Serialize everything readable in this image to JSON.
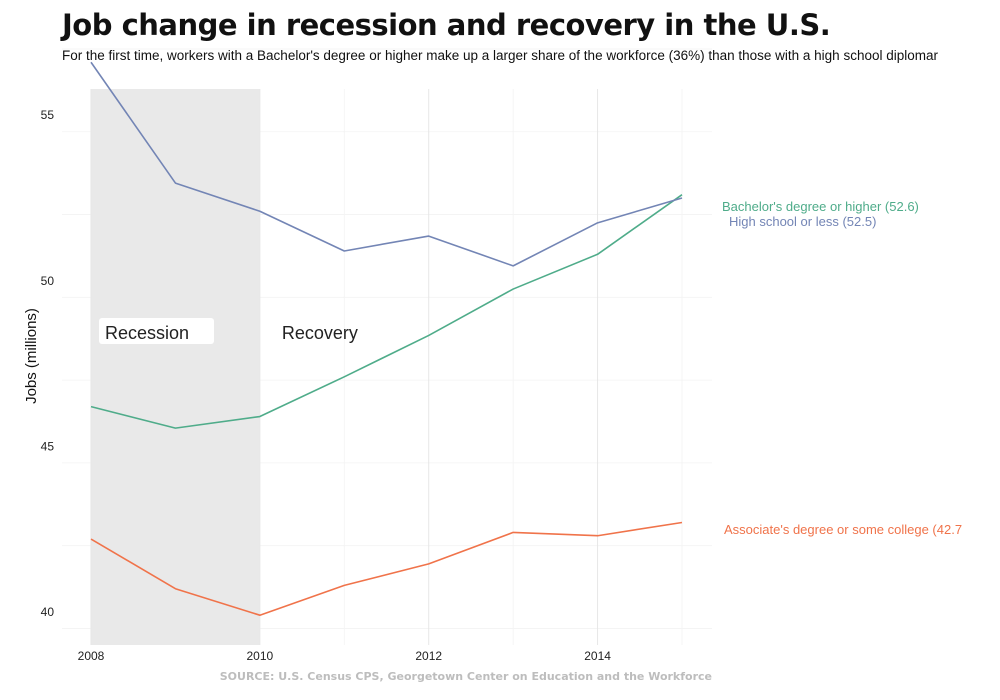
{
  "title": "Job change in recession and recovery in the U.S.",
  "subtitle": "For the first time, workers with a Bachelor's degree or higher make up a larger share of the workforce (36%) than those with a high school diplomar",
  "source": "SOURCE: U.S. Census CPS, Georgetown Center on Education and the Workforce",
  "chart_data": {
    "type": "line",
    "ylabel": "Jobs (millions)",
    "xlabel": "",
    "x": [
      2008,
      2009,
      2010,
      2011,
      2012,
      2013,
      2014,
      2015
    ],
    "xlim": [
      2008,
      2015
    ],
    "ylim": [
      39,
      57
    ],
    "x_ticks": [
      2008,
      2010,
      2012,
      2014
    ],
    "y_ticks": [
      40,
      45,
      50,
      55
    ],
    "grid": true,
    "shaded_regions": [
      {
        "label": "Recession",
        "x_start": 2008,
        "x_end": 2010,
        "color": "#e8e8e8"
      },
      {
        "label": "Recovery",
        "x_start": 2010,
        "x_end": 2015
      }
    ],
    "series": [
      {
        "name": "Bachelor's degree or higher",
        "end_label": "Bachelor's degree or higher (52.6)",
        "color": "#4fac8a",
        "values": [
          46.2,
          45.55,
          45.9,
          47.1,
          48.35,
          49.75,
          50.8,
          52.6
        ]
      },
      {
        "name": "High school or less",
        "end_label": "High school or less (52.5)",
        "color": "#7385b5",
        "values": [
          56.6,
          52.95,
          52.1,
          50.9,
          51.35,
          50.45,
          51.75,
          52.5
        ]
      },
      {
        "name": "Associate's degree or some college",
        "end_label": "Associate's degree or some college (42.7",
        "color": "#f0734a",
        "values": [
          42.2,
          40.7,
          39.9,
          40.8,
          41.45,
          42.4,
          42.3,
          42.7
        ]
      }
    ]
  }
}
